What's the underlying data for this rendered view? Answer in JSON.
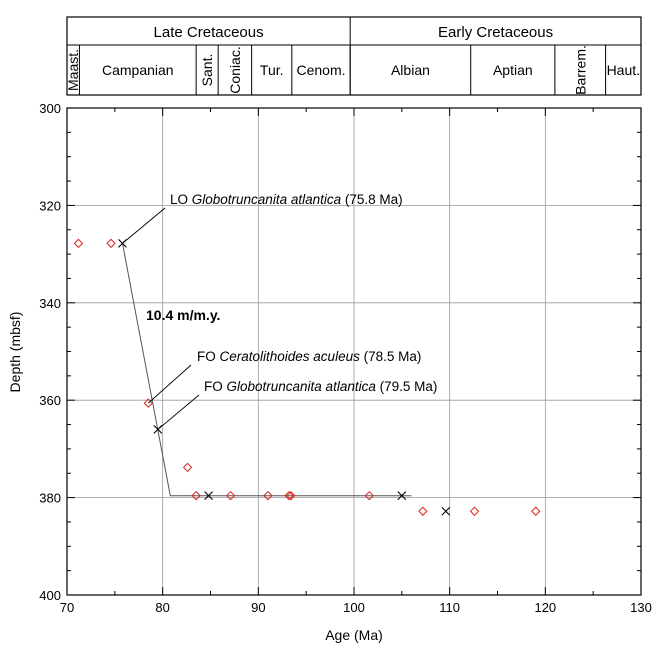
{
  "chart_data": {
    "type": "scatter",
    "xlabel": "Age (Ma)",
    "ylabel": "Depth (mbsf)",
    "xlim": [
      70,
      130
    ],
    "ylim": [
      400,
      300
    ],
    "x_ticks": [
      "70",
      "80",
      "90",
      "100",
      "110",
      "120",
      "130"
    ],
    "y_ticks": [
      "300",
      "320",
      "340",
      "360",
      "380",
      "400"
    ],
    "grid": true,
    "epochs": [
      {
        "name": "Late Cretaceous",
        "start": 70,
        "end": 99.6
      },
      {
        "name": "Early Cretaceous",
        "start": 99.6,
        "end": 130
      }
    ],
    "stages": [
      {
        "name": "Maast.",
        "start": 70,
        "end": 71.3,
        "vertical": true
      },
      {
        "name": "Campanian",
        "start": 71.3,
        "end": 83.5,
        "vertical": false
      },
      {
        "name": "Sant.",
        "start": 83.5,
        "end": 85.8,
        "vertical": true
      },
      {
        "name": "Coniac.",
        "start": 85.8,
        "end": 89.3,
        "vertical": true
      },
      {
        "name": "Tur.",
        "start": 89.3,
        "end": 93.5,
        "vertical": false
      },
      {
        "name": "Cenom.",
        "start": 93.5,
        "end": 99.6,
        "vertical": false
      },
      {
        "name": "Albian",
        "start": 99.6,
        "end": 112.2,
        "vertical": false
      },
      {
        "name": "Aptian",
        "start": 112.2,
        "end": 121.0,
        "vertical": false
      },
      {
        "name": "Barrem.",
        "start": 121.0,
        "end": 126.3,
        "vertical": true
      },
      {
        "name": "Haut.",
        "start": 126.3,
        "end": 130,
        "vertical": false
      }
    ],
    "series": [
      {
        "marker": "diamond",
        "color": "#d42a20",
        "points": [
          [
            71.2,
            327.8
          ],
          [
            74.6,
            327.8
          ],
          [
            78.5,
            360.6
          ],
          [
            82.6,
            373.8
          ],
          [
            83.5,
            379.6
          ],
          [
            87.1,
            379.6
          ],
          [
            91.0,
            379.6
          ],
          [
            93.2,
            379.6
          ],
          [
            93.4,
            379.6
          ],
          [
            101.6,
            379.6
          ],
          [
            107.2,
            382.8
          ],
          [
            112.6,
            382.8
          ],
          [
            119.0,
            382.8
          ]
        ]
      },
      {
        "marker": "cross",
        "color": "#000000",
        "points": [
          [
            75.8,
            327.8
          ],
          [
            79.5,
            366.0
          ],
          [
            84.8,
            379.6
          ],
          [
            105.0,
            379.6
          ],
          [
            109.6,
            382.8
          ]
        ]
      }
    ],
    "age_depth_line": [
      [
        75.8,
        327.8
      ],
      [
        80.8,
        379.6
      ],
      [
        106.0,
        379.6
      ]
    ],
    "annotations": [
      {
        "id": "lo",
        "prefix": "LO ",
        "taxon": "Globotruncanita atlantica",
        "suffix": " (75.8 Ma)",
        "target": [
          75.8,
          327.8
        ]
      },
      {
        "id": "fo1",
        "prefix": "FO ",
        "taxon": "Ceratolithoides aculeus",
        "suffix": " (78.5 Ma)",
        "target": [
          78.5,
          360.6
        ]
      },
      {
        "id": "fo2",
        "prefix": "FO ",
        "taxon": "Globotruncanita atlantica",
        "suffix": " (79.5 Ma)",
        "target": [
          79.5,
          366.0
        ]
      }
    ],
    "rate_label": "10.4 m/m.y."
  }
}
